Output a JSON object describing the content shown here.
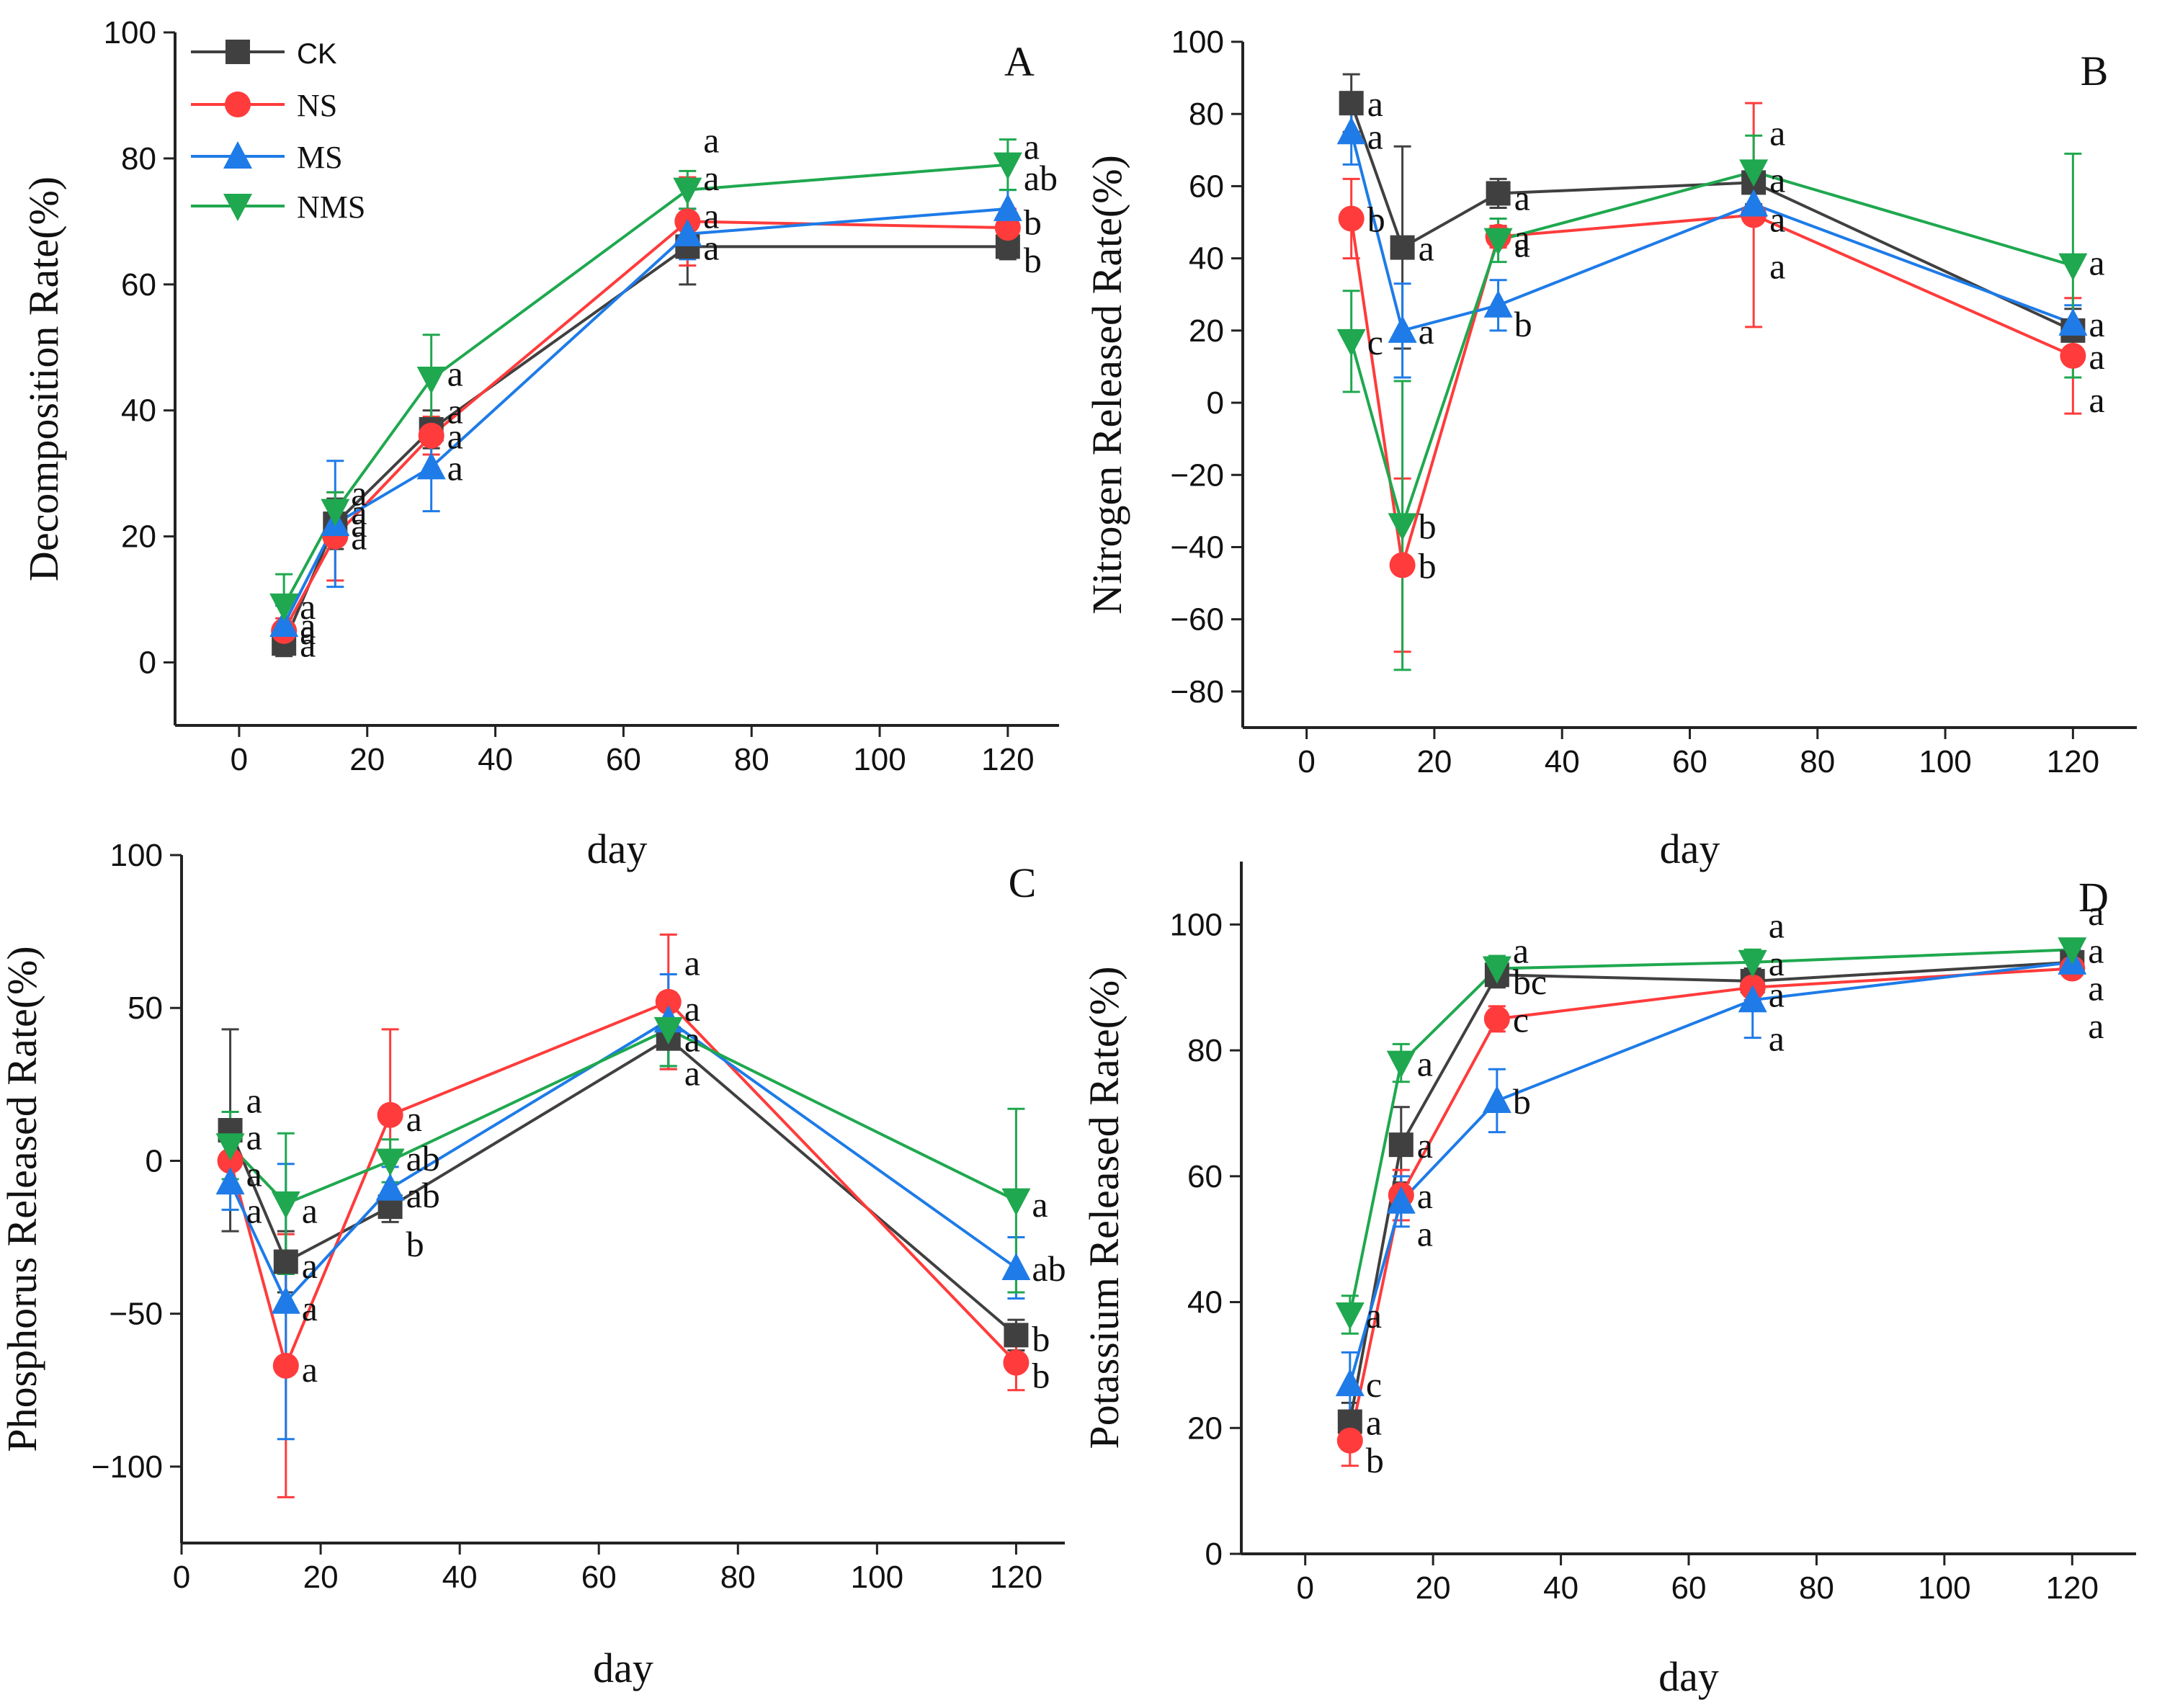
{
  "figure": {
    "legend": [
      {
        "name": "CK",
        "color": "#404040",
        "marker": "square"
      },
      {
        "name": "NS",
        "color": "#ff3b3b",
        "marker": "circle"
      },
      {
        "name": "MS",
        "color": "#1e7be8",
        "marker": "triangle-up"
      },
      {
        "name": "NMS",
        "color": "#1fa84f",
        "marker": "triangle-down"
      }
    ]
  },
  "chart_data": [
    {
      "type": "line",
      "panel_label": "A",
      "xlabel": "day",
      "ylabel": "Decomposition Rate(%)",
      "xlim": [
        -10,
        128
      ],
      "ylim": [
        -10,
        100
      ],
      "xticks": [
        0,
        20,
        40,
        60,
        80,
        100,
        120
      ],
      "yticks": [
        0,
        20,
        40,
        60,
        80,
        100
      ],
      "x": [
        7,
        15,
        30,
        70,
        120
      ],
      "series": [
        {
          "name": "CK",
          "values": [
            3,
            22,
            37,
            66,
            66
          ],
          "errors": [
            2,
            4,
            3,
            6,
            2
          ]
        },
        {
          "name": "NS",
          "values": [
            5,
            20,
            36,
            70,
            69
          ],
          "errors": [
            2,
            7,
            3,
            7,
            3
          ]
        },
        {
          "name": "MS",
          "values": [
            6,
            22,
            31,
            68,
            72
          ],
          "errors": [
            3,
            10,
            7,
            4,
            3
          ]
        },
        {
          "name": "NMS",
          "values": [
            9,
            24,
            45,
            75,
            79
          ],
          "errors": [
            5,
            3,
            7,
            3,
            4
          ]
        }
      ],
      "annotations": [
        {
          "x": 7,
          "y": 3,
          "text": "a"
        },
        {
          "x": 7,
          "y": 5,
          "text": "a"
        },
        {
          "x": 7,
          "y": 6,
          "text": "a"
        },
        {
          "x": 7,
          "y": 9,
          "text": "a"
        },
        {
          "x": 15,
          "y": 20,
          "text": "a"
        },
        {
          "x": 15,
          "y": 22,
          "text": "a"
        },
        {
          "x": 15,
          "y": 24,
          "text": "a"
        },
        {
          "x": 15,
          "y": 27,
          "text": "a"
        },
        {
          "x": 30,
          "y": 31,
          "text": "a"
        },
        {
          "x": 30,
          "y": 36,
          "text": "a"
        },
        {
          "x": 30,
          "y": 40,
          "text": "a"
        },
        {
          "x": 30,
          "y": 46,
          "text": "a"
        },
        {
          "x": 70,
          "y": 66,
          "text": "a"
        },
        {
          "x": 70,
          "y": 71,
          "text": "a"
        },
        {
          "x": 70,
          "y": 77,
          "text": "a"
        },
        {
          "x": 70,
          "y": 83,
          "text": "a"
        },
        {
          "x": 120,
          "y": 64,
          "text": "b"
        },
        {
          "x": 120,
          "y": 70,
          "text": "b"
        },
        {
          "x": 120,
          "y": 77,
          "text": "ab"
        },
        {
          "x": 120,
          "y": 82,
          "text": "a"
        }
      ]
    },
    {
      "type": "line",
      "panel_label": "B",
      "xlabel": "day",
      "ylabel": "Nitrogen Released Rate(%)",
      "xlim": [
        -10,
        130
      ],
      "ylim": [
        -90,
        100
      ],
      "xticks": [
        0,
        20,
        40,
        60,
        80,
        100,
        120
      ],
      "yticks": [
        -80,
        -60,
        -40,
        -20,
        0,
        20,
        40,
        60,
        80,
        100
      ],
      "x": [
        7,
        15,
        30,
        70,
        120
      ],
      "series": [
        {
          "name": "CK",
          "values": [
            83,
            43,
            58,
            61,
            20
          ],
          "errors": [
            8,
            28,
            4,
            6,
            6
          ]
        },
        {
          "name": "NS",
          "values": [
            51,
            -45,
            46,
            52,
            13
          ],
          "errors": [
            11,
            24,
            3,
            31,
            16
          ]
        },
        {
          "name": "MS",
          "values": [
            75,
            20,
            27,
            55,
            22
          ],
          "errors": [
            9,
            13,
            7,
            5,
            5
          ]
        },
        {
          "name": "NMS",
          "values": [
            17,
            -34,
            45,
            64,
            38
          ],
          "errors": [
            14,
            40,
            6,
            10,
            31
          ]
        }
      ],
      "annotations": [
        {
          "x": 7,
          "y": 83,
          "text": "a"
        },
        {
          "x": 7,
          "y": 74,
          "text": "a"
        },
        {
          "x": 7,
          "y": 51,
          "text": "b"
        },
        {
          "x": 7,
          "y": 17,
          "text": "c"
        },
        {
          "x": 15,
          "y": 43,
          "text": "a"
        },
        {
          "x": 15,
          "y": 20,
          "text": "a"
        },
        {
          "x": 15,
          "y": -34,
          "text": "b"
        },
        {
          "x": 15,
          "y": -45,
          "text": "b"
        },
        {
          "x": 30,
          "y": 57,
          "text": "a"
        },
        {
          "x": 30,
          "y": 46,
          "text": "a"
        },
        {
          "x": 30,
          "y": 44,
          "text": "a"
        },
        {
          "x": 30,
          "y": 22,
          "text": "b"
        },
        {
          "x": 70,
          "y": 75,
          "text": "a"
        },
        {
          "x": 70,
          "y": 62,
          "text": "a"
        },
        {
          "x": 70,
          "y": 51,
          "text": "a"
        },
        {
          "x": 70,
          "y": 38,
          "text": "a"
        },
        {
          "x": 120,
          "y": 39,
          "text": "a"
        },
        {
          "x": 120,
          "y": 22,
          "text": "a"
        },
        {
          "x": 120,
          "y": 13,
          "text": "a"
        },
        {
          "x": 120,
          "y": 1,
          "text": "a"
        }
      ]
    },
    {
      "type": "line",
      "panel_label": "C",
      "xlabel": "day",
      "ylabel": "Phosphorus Released Rate(%)",
      "xlim": [
        0,
        127
      ],
      "ylim": [
        -125,
        100
      ],
      "xticks": [
        0,
        20,
        40,
        60,
        80,
        100,
        120
      ],
      "yticks": [
        -100,
        -50,
        0,
        50,
        100
      ],
      "x": [
        7,
        15,
        30,
        70,
        120
      ],
      "series": [
        {
          "name": "CK",
          "values": [
            10,
            -33,
            -15,
            40,
            -57
          ],
          "errors": [
            33,
            10,
            5,
            10,
            5
          ]
        },
        {
          "name": "NS",
          "values": [
            0,
            -67,
            15,
            52,
            -66
          ],
          "errors": [
            10,
            43,
            28,
            22,
            9
          ]
        },
        {
          "name": "MS",
          "values": [
            -7,
            -46,
            -9,
            46,
            -35
          ],
          "errors": [
            9,
            45,
            7,
            15,
            10
          ]
        },
        {
          "name": "NMS",
          "values": [
            5,
            -14,
            0,
            43,
            -13
          ],
          "errors": [
            11,
            23,
            7,
            12,
            30
          ]
        }
      ],
      "annotations": [
        {
          "x": 7,
          "y": 20,
          "text": "a"
        },
        {
          "x": 7,
          "y": 8,
          "text": "a"
        },
        {
          "x": 7,
          "y": -4,
          "text": "a"
        },
        {
          "x": 7,
          "y": -16,
          "text": "a"
        },
        {
          "x": 15,
          "y": -16,
          "text": "a"
        },
        {
          "x": 15,
          "y": -34,
          "text": "a"
        },
        {
          "x": 15,
          "y": -48,
          "text": "a"
        },
        {
          "x": 15,
          "y": -68,
          "text": "a"
        },
        {
          "x": 30,
          "y": 14,
          "text": "a"
        },
        {
          "x": 30,
          "y": 1,
          "text": "ab"
        },
        {
          "x": 30,
          "y": -11,
          "text": "ab"
        },
        {
          "x": 30,
          "y": -27,
          "text": "b"
        },
        {
          "x": 70,
          "y": 65,
          "text": "a"
        },
        {
          "x": 70,
          "y": 50,
          "text": "a"
        },
        {
          "x": 70,
          "y": 40,
          "text": "a"
        },
        {
          "x": 70,
          "y": 29,
          "text": "a"
        },
        {
          "x": 120,
          "y": -14,
          "text": "a"
        },
        {
          "x": 120,
          "y": -35,
          "text": "ab"
        },
        {
          "x": 120,
          "y": -58,
          "text": "b"
        },
        {
          "x": 120,
          "y": -70,
          "text": "b"
        }
      ]
    },
    {
      "type": "line",
      "panel_label": "D",
      "xlabel": "day",
      "ylabel": "Potassium Released Rate(%)",
      "xlim": [
        -10,
        130
      ],
      "ylim": [
        0,
        110
      ],
      "xticks": [
        0,
        20,
        40,
        60,
        80,
        100,
        120
      ],
      "yticks": [
        0,
        20,
        40,
        60,
        80,
        100
      ],
      "x": [
        7,
        15,
        30,
        70,
        120
      ],
      "series": [
        {
          "name": "CK",
          "values": [
            21,
            65,
            92,
            91,
            94
          ],
          "errors": [
            3,
            6,
            2,
            2,
            1
          ]
        },
        {
          "name": "NS",
          "values": [
            18,
            57,
            85,
            90,
            93
          ],
          "errors": [
            4,
            4,
            2,
            2,
            1
          ]
        },
        {
          "name": "MS",
          "values": [
            27,
            56,
            72,
            88,
            94
          ],
          "errors": [
            5,
            4,
            5,
            6,
            2
          ]
        },
        {
          "name": "NMS",
          "values": [
            38,
            78,
            93,
            94,
            96
          ],
          "errors": [
            3,
            3,
            2,
            2,
            1
          ]
        }
      ],
      "annotations": [
        {
          "x": 7,
          "y": 38,
          "text": "a"
        },
        {
          "x": 7,
          "y": 27,
          "text": "c"
        },
        {
          "x": 7,
          "y": 21,
          "text": "a"
        },
        {
          "x": 7,
          "y": 15,
          "text": "b"
        },
        {
          "x": 15,
          "y": 78,
          "text": "a"
        },
        {
          "x": 15,
          "y": 65,
          "text": "a"
        },
        {
          "x": 15,
          "y": 57,
          "text": "a"
        },
        {
          "x": 15,
          "y": 51,
          "text": "a"
        },
        {
          "x": 30,
          "y": 96,
          "text": "a"
        },
        {
          "x": 30,
          "y": 91,
          "text": "bc"
        },
        {
          "x": 30,
          "y": 85,
          "text": "c"
        },
        {
          "x": 30,
          "y": 72,
          "text": "b"
        },
        {
          "x": 70,
          "y": 100,
          "text": "a"
        },
        {
          "x": 70,
          "y": 94,
          "text": "a"
        },
        {
          "x": 70,
          "y": 89,
          "text": "a"
        },
        {
          "x": 70,
          "y": 82,
          "text": "a"
        },
        {
          "x": 120,
          "y": 102,
          "text": "a"
        },
        {
          "x": 120,
          "y": 96,
          "text": "a"
        },
        {
          "x": 120,
          "y": 90,
          "text": "a"
        },
        {
          "x": 120,
          "y": 84,
          "text": "a"
        }
      ]
    }
  ]
}
